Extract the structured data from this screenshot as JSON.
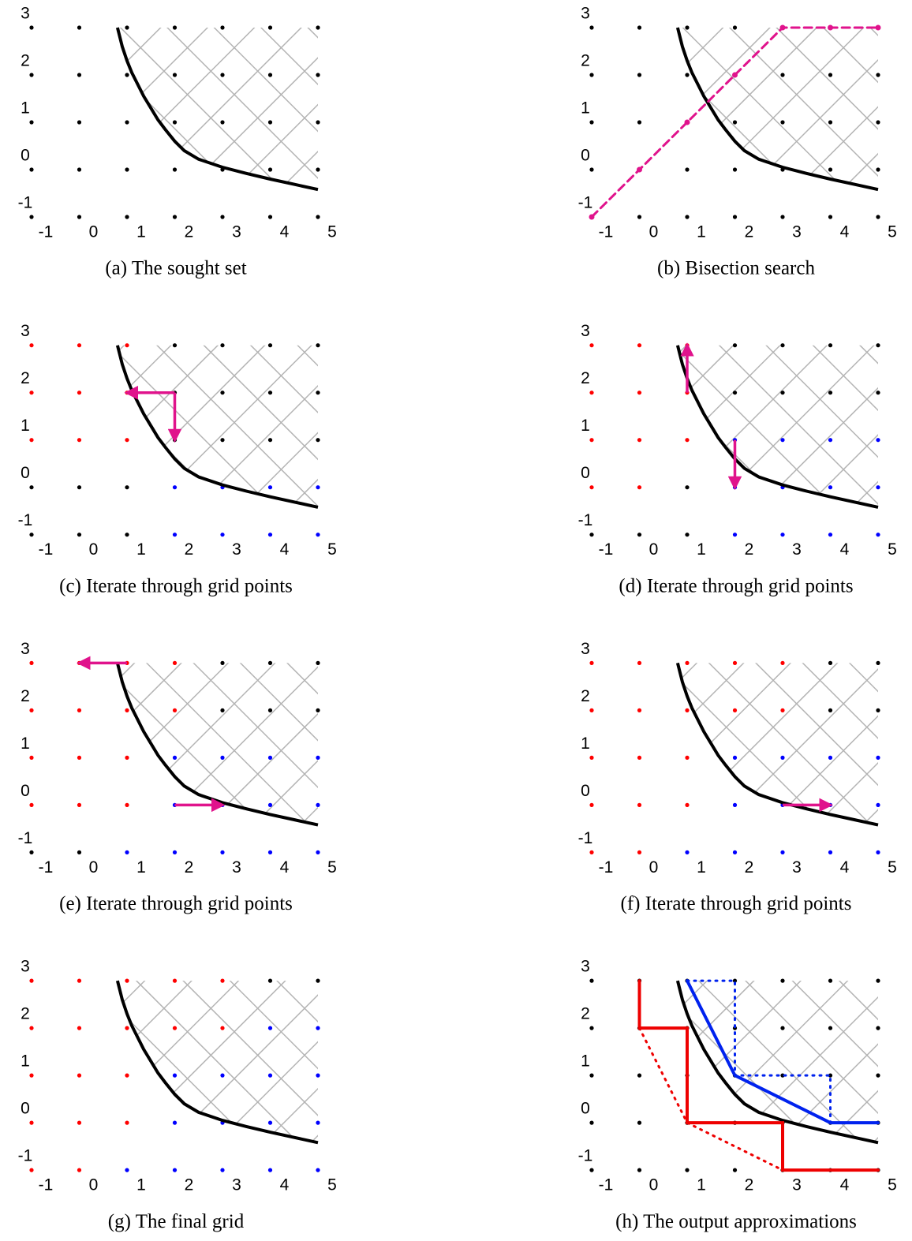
{
  "xticks": [
    -1,
    0,
    1,
    2,
    3,
    4,
    5
  ],
  "yticks": [
    -1,
    0,
    1,
    2,
    3
  ],
  "boundary": {
    "x": [
      0.8,
      0.9,
      1,
      1.1,
      1.2,
      1.35,
      1.5,
      1.65,
      1.8,
      2,
      2.2,
      2.5,
      3,
      3.5,
      4,
      4.5,
      5
    ],
    "y": [
      3,
      2.6,
      2.3,
      2.05,
      1.85,
      1.55,
      1.3,
      1.05,
      0.85,
      0.6,
      0.4,
      0.22,
      0.05,
      -0.08,
      -0.2,
      -0.31,
      -0.42
    ]
  },
  "panels": [
    {
      "caption": "(a) The sought set",
      "points": [
        [
          "black",
          "black",
          "black",
          "black",
          "black",
          "black",
          "black"
        ],
        [
          "black",
          "black",
          "black",
          "black",
          "black",
          "black",
          "black"
        ],
        [
          "black",
          "black",
          "black",
          "black",
          "black",
          "black",
          "black"
        ],
        [
          "black",
          "black",
          "black",
          "black",
          "black",
          "black",
          "black"
        ],
        [
          "black",
          "black",
          "black",
          "black",
          "black",
          "black",
          "black"
        ]
      ]
    },
    {
      "caption": "(b) Bisection search",
      "points": [
        [
          "black",
          "black",
          "black",
          "black",
          "black",
          "black",
          "black"
        ],
        [
          "black",
          "black",
          "black",
          "black",
          "black",
          "black",
          "black"
        ],
        [
          "black",
          "black",
          "black",
          "black",
          "black",
          "black",
          "black"
        ],
        [
          "black",
          "black",
          "black",
          "black",
          "black",
          "black",
          "black"
        ],
        [
          "black",
          "black",
          "black",
          "black",
          "black",
          "black",
          "black"
        ]
      ],
      "lines": [
        {
          "x": [
            -1,
            0,
            1,
            2,
            3,
            4,
            5
          ],
          "y": [
            -1,
            0,
            1,
            2,
            3,
            3,
            3
          ],
          "color": "#e0138c",
          "style": "dashed",
          "markers": true
        }
      ]
    },
    {
      "caption": "(c) Iterate through grid points",
      "points": [
        [
          "red",
          "red",
          "red",
          "black",
          "black",
          "black",
          "black"
        ],
        [
          "red",
          "red",
          "red",
          "black",
          "black",
          "black",
          "black"
        ],
        [
          "red",
          "red",
          "red",
          "black",
          "black",
          "black",
          "black"
        ],
        [
          "black",
          "black",
          "black",
          "blue",
          "blue",
          "blue",
          "blue"
        ],
        [
          "black",
          "black",
          "black",
          "blue",
          "blue",
          "blue",
          "blue"
        ]
      ],
      "arrows": [
        {
          "x": [
            2,
            1
          ],
          "y": [
            2,
            2
          ]
        },
        {
          "x": [
            2,
            2
          ],
          "y": [
            2,
            1
          ]
        }
      ]
    },
    {
      "caption": "(d) Iterate through grid points",
      "points": [
        [
          "red",
          "red",
          "red",
          "black",
          "black",
          "black",
          "black"
        ],
        [
          "red",
          "red",
          "red",
          "black",
          "black",
          "black",
          "black"
        ],
        [
          "red",
          "red",
          "red",
          "blue",
          "blue",
          "blue",
          "blue"
        ],
        [
          "red",
          "red",
          "black",
          "blue",
          "blue",
          "blue",
          "blue"
        ],
        [
          "black",
          "black",
          "black",
          "blue",
          "blue",
          "blue",
          "blue"
        ]
      ],
      "arrows": [
        {
          "x": [
            1,
            1
          ],
          "y": [
            2,
            3
          ]
        },
        {
          "x": [
            2,
            2
          ],
          "y": [
            1,
            0
          ]
        }
      ]
    },
    {
      "caption": "(e) Iterate through grid points",
      "points": [
        [
          "red",
          "red",
          "red",
          "red",
          "black",
          "black",
          "black"
        ],
        [
          "red",
          "red",
          "red",
          "red",
          "black",
          "black",
          "black"
        ],
        [
          "red",
          "red",
          "red",
          "blue",
          "blue",
          "blue",
          "blue"
        ],
        [
          "red",
          "red",
          "red",
          "blue",
          "blue",
          "blue",
          "blue"
        ],
        [
          "black",
          "black",
          "blue",
          "blue",
          "blue",
          "blue",
          "blue"
        ]
      ],
      "arrows": [
        {
          "x": [
            1,
            0
          ],
          "y": [
            3,
            3
          ]
        },
        {
          "x": [
            2,
            3
          ],
          "y": [
            0,
            0
          ]
        }
      ]
    },
    {
      "caption": "(f) Iterate through grid points",
      "points": [
        [
          "red",
          "red",
          "red",
          "red",
          "red",
          "black",
          "black"
        ],
        [
          "red",
          "red",
          "red",
          "red",
          "red",
          "black",
          "black"
        ],
        [
          "red",
          "red",
          "red",
          "blue",
          "blue",
          "blue",
          "blue"
        ],
        [
          "red",
          "red",
          "red",
          "blue",
          "blue",
          "blue",
          "blue"
        ],
        [
          "red",
          "red",
          "blue",
          "blue",
          "blue",
          "blue",
          "blue"
        ]
      ],
      "arrows": [
        {
          "x": [
            3,
            4
          ],
          "y": [
            0,
            0
          ]
        }
      ]
    },
    {
      "caption": "(g) The final grid",
      "points": [
        [
          "red",
          "red",
          "red",
          "red",
          "red",
          "black",
          "black"
        ],
        [
          "red",
          "red",
          "red",
          "red",
          "red",
          "blue",
          "blue"
        ],
        [
          "red",
          "red",
          "red",
          "blue",
          "blue",
          "blue",
          "blue"
        ],
        [
          "red",
          "red",
          "red",
          "blue",
          "blue",
          "blue",
          "blue"
        ],
        [
          "red",
          "red",
          "blue",
          "blue",
          "blue",
          "blue",
          "blue"
        ]
      ]
    },
    {
      "caption": "(h) The output approximations",
      "points": [
        [
          "black",
          "black",
          "black",
          "black",
          "black",
          "black",
          "black"
        ],
        [
          "black",
          "black",
          "black",
          "black",
          "black",
          "black",
          "black"
        ],
        [
          "black",
          "black",
          "black",
          "black",
          "black",
          "black",
          "black"
        ],
        [
          "black",
          "black",
          "black",
          "black",
          "black",
          "black",
          "black"
        ],
        [
          "black",
          "black",
          "black",
          "black",
          "black",
          "black",
          "black"
        ]
      ],
      "lines": [
        {
          "x": [
            0,
            0,
            1,
            1,
            3,
            3,
            5
          ],
          "y": [
            3,
            2,
            2,
            0,
            0,
            -1,
            -1
          ],
          "color": "#ee0000",
          "style": "solid"
        },
        {
          "x": [
            0,
            1,
            3
          ],
          "y": [
            2,
            0,
            -1
          ],
          "color": "#ee0000",
          "style": "dotted"
        },
        {
          "x": [
            1,
            2,
            4,
            5
          ],
          "y": [
            3,
            1,
            0,
            0
          ],
          "color": "#0022ee",
          "style": "solid"
        },
        {
          "x": [
            1,
            2,
            2,
            4,
            4
          ],
          "y": [
            3,
            3,
            1,
            1,
            0
          ],
          "color": "#0022ee",
          "style": "dotted"
        }
      ]
    }
  ]
}
